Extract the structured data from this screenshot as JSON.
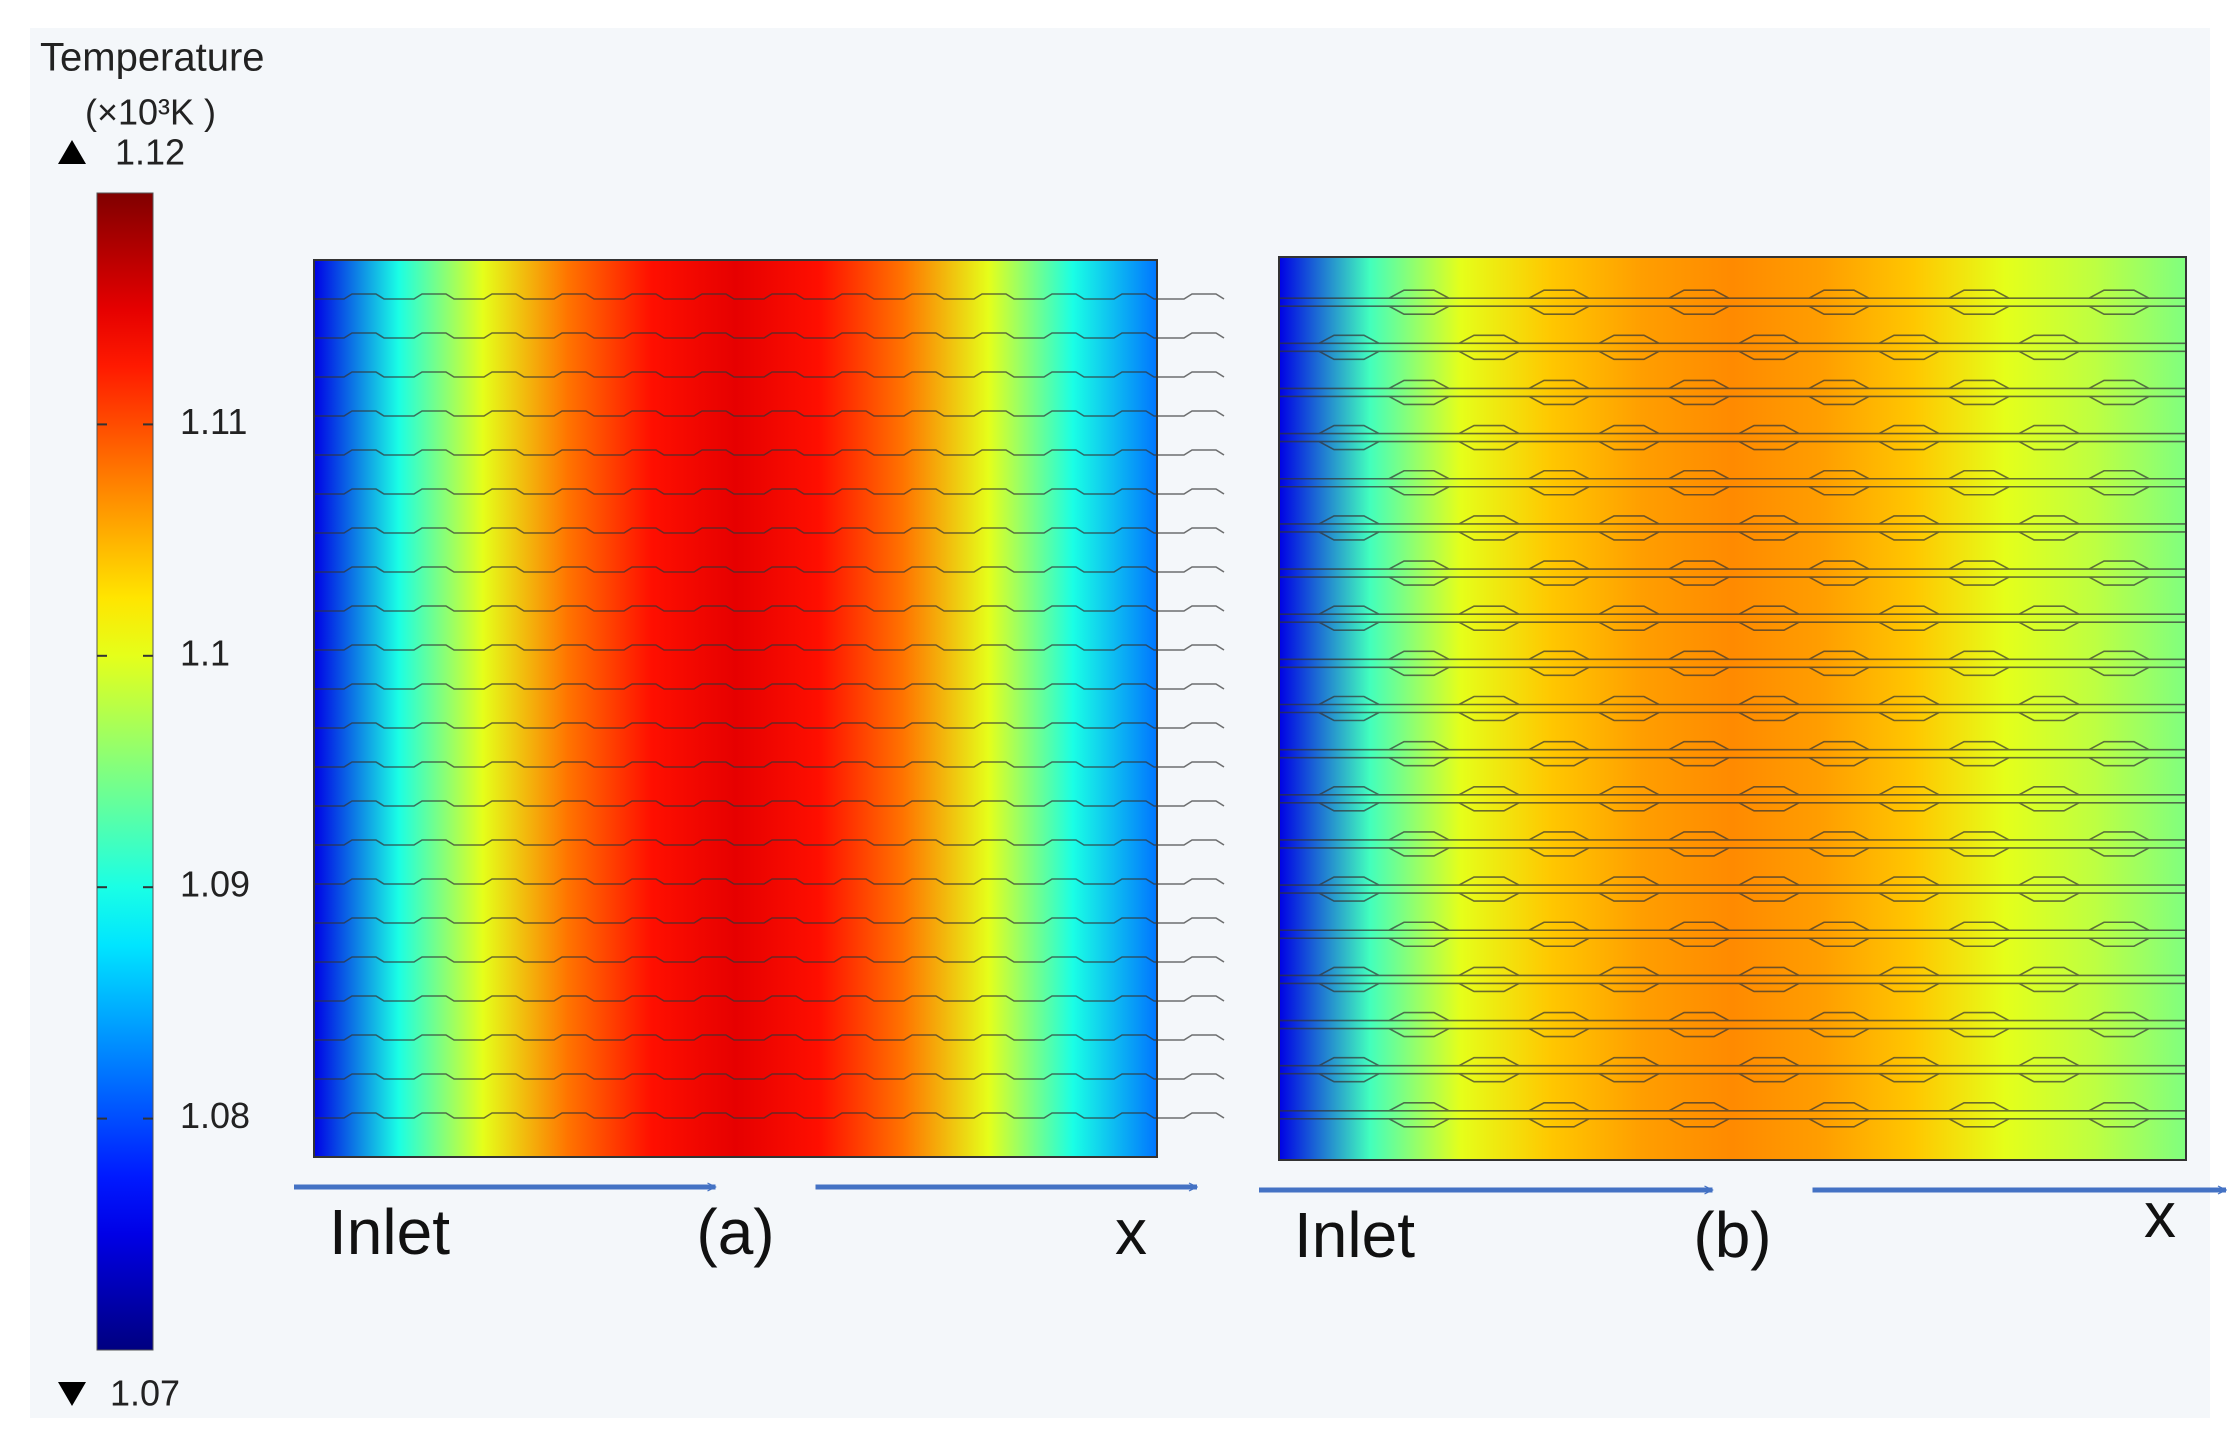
{
  "chart_data": {
    "type": "heatmap",
    "title": "Temperature",
    "unit": "(×10³K )",
    "ylim": [
      1.07,
      1.12
    ],
    "yticks": [
      1.08,
      1.09,
      1.1,
      1.11
    ],
    "panels": [
      {
        "label": "(a)",
        "inlet_label": "Inlet",
        "x_label": "x",
        "values": [
          1.075,
          1.09,
          1.1,
          1.108,
          1.113,
          1.115,
          1.113,
          1.108,
          1.1,
          1.09,
          1.082
        ]
      },
      {
        "label": "(b)",
        "inlet_label": "Inlet",
        "x_label": "x",
        "values": [
          1.075,
          1.092,
          1.1,
          1.104,
          1.106,
          1.107,
          1.106,
          1.104,
          1.1,
          1.098,
          1.095
        ]
      }
    ]
  }
}
